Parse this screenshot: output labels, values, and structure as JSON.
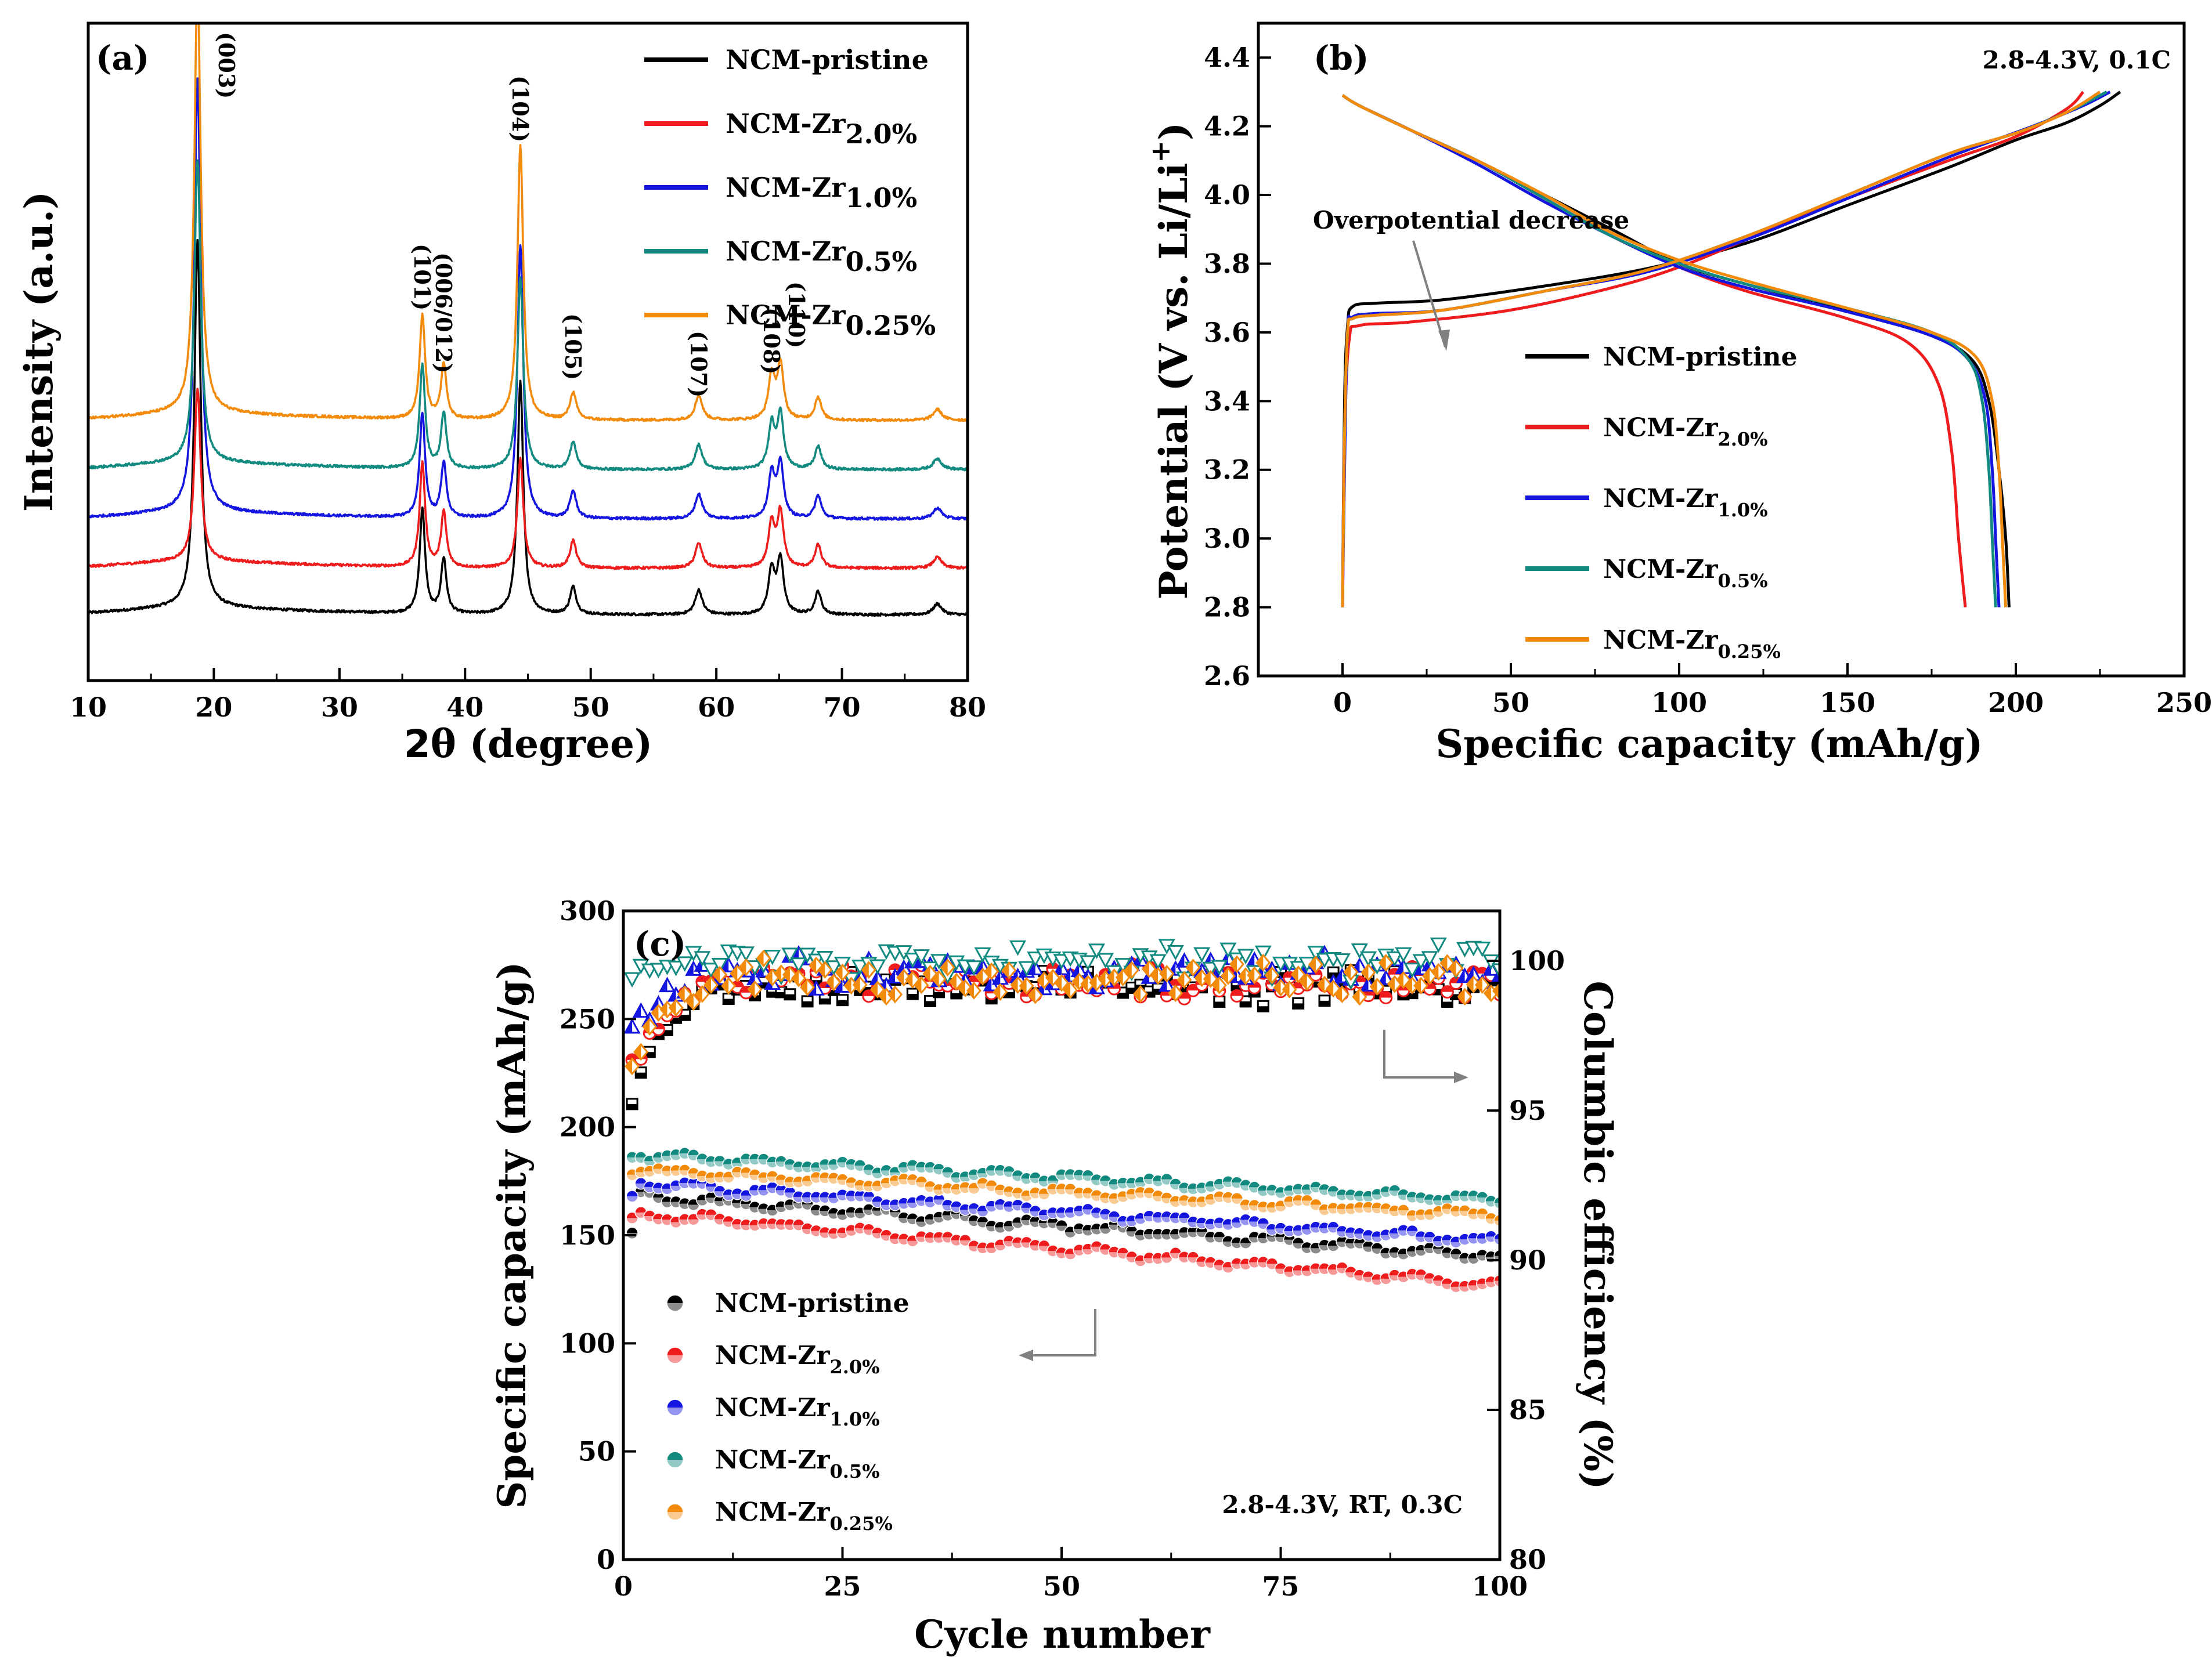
{
  "chart_data": [
    {
      "panel": "(a)",
      "type": "line",
      "title": "",
      "xlabel": "2θ (degree)",
      "ylabel": "Intensity (a.u.)",
      "xlim": [
        10,
        80
      ],
      "ylim": [
        -1.2,
        10.8
      ],
      "xticks": [
        10,
        20,
        30,
        40,
        50,
        60,
        70,
        80
      ],
      "peak_labels": [
        {
          "label": "(003)",
          "x": 18.7
        },
        {
          "label": "(101)",
          "x": 36.6
        },
        {
          "label": "(006/012)",
          "x": 38.3
        },
        {
          "label": "(104)",
          "x": 44.4
        },
        {
          "label": "(105)",
          "x": 48.6
        },
        {
          "label": "(107)",
          "x": 58.6
        },
        {
          "label": "(108)",
          "x": 64.4
        },
        {
          "label": "(110)",
          "x": 65.1
        }
      ],
      "peaks": [
        {
          "x": 18.7,
          "w": 0.3,
          "h": 7.9
        },
        {
          "x": 36.6,
          "w": 0.26,
          "h": 1.9
        },
        {
          "x": 38.3,
          "w": 0.26,
          "h": 1.0
        },
        {
          "x": 44.4,
          "w": 0.28,
          "h": 5.0
        },
        {
          "x": 48.6,
          "w": 0.3,
          "h": 0.5
        },
        {
          "x": 58.6,
          "w": 0.34,
          "h": 0.45
        },
        {
          "x": 64.4,
          "w": 0.3,
          "h": 0.8
        },
        {
          "x": 65.1,
          "w": 0.3,
          "h": 1.0
        },
        {
          "x": 68.1,
          "w": 0.3,
          "h": 0.42
        },
        {
          "x": 77.6,
          "w": 0.4,
          "h": 0.2
        }
      ],
      "series": [
        {
          "name": "NCM-pristine",
          "subscript": "",
          "color": "#000000",
          "offset": 0.0,
          "scale": 0.85
        },
        {
          "name": "NCM-Zr",
          "subscript": "2.0%",
          "color": "#ee1c1c",
          "offset": 0.85,
          "scale": 0.4
        },
        {
          "name": "NCM-Zr",
          "subscript": "1.0%",
          "color": "#1515e0",
          "offset": 1.75,
          "scale": 1.0
        },
        {
          "name": "NCM-Zr",
          "subscript": "0.5%",
          "color": "#138a80",
          "offset": 2.65,
          "scale": 0.7
        },
        {
          "name": "NCM-Zr",
          "subscript": "0.25%",
          "color": "#f28a0c",
          "offset": 3.55,
          "scale": 1.0
        }
      ]
    },
    {
      "panel": "(b)",
      "type": "line",
      "title": "",
      "annotation": "2.8-4.3V, 0.1C",
      "note": "Overpotential decrease",
      "xlabel": "Specific capacity (mAh/g)",
      "ylabel": "Potential (V vs. Li/Li",
      "ylabel_sup": "+",
      "ylabel_end": ")",
      "xlim": [
        -25,
        250
      ],
      "ylim": [
        2.6,
        4.5
      ],
      "xticks": [
        0,
        50,
        100,
        150,
        200,
        250
      ],
      "yticks": [
        2.6,
        2.8,
        3.0,
        3.2,
        3.4,
        3.6,
        3.8,
        4.0,
        4.2,
        4.4
      ],
      "series": [
        {
          "name": "NCM-pristine",
          "subscript": "",
          "color": "#000000",
          "charge": [
            [
              0,
              2.8
            ],
            [
              0.6,
              3.4
            ],
            [
              1.5,
              3.62
            ],
            [
              3,
              3.675
            ],
            [
              10,
              3.685
            ],
            [
              30,
              3.695
            ],
            [
              60,
              3.735
            ],
            [
              90,
              3.785
            ],
            [
              120,
              3.86
            ],
            [
              150,
              3.97
            ],
            [
              180,
              4.08
            ],
            [
              200,
              4.16
            ],
            [
              215,
              4.21
            ],
            [
              225,
              4.26
            ],
            [
              231,
              4.3
            ]
          ],
          "discharge": [
            [
              0,
              4.29
            ],
            [
              5,
              4.26
            ],
            [
              20,
              4.19
            ],
            [
              40,
              4.1
            ],
            [
              60,
              4.0
            ],
            [
              80,
              3.9
            ],
            [
              100,
              3.8
            ],
            [
              120,
              3.74
            ],
            [
              150,
              3.665
            ],
            [
              175,
              3.59
            ],
            [
              187,
              3.52
            ],
            [
              192,
              3.4
            ],
            [
              195,
              3.2
            ],
            [
              197,
              3.0
            ],
            [
              198,
              2.8
            ]
          ]
        },
        {
          "name": "NCM-Zr",
          "subscript": "2.0%",
          "color": "#ee1c1c",
          "charge": [
            [
              0,
              2.8
            ],
            [
              0.6,
              3.3
            ],
            [
              2,
              3.58
            ],
            [
              5,
              3.62
            ],
            [
              20,
              3.63
            ],
            [
              50,
              3.665
            ],
            [
              80,
              3.73
            ],
            [
              100,
              3.79
            ],
            [
              120,
              3.87
            ],
            [
              150,
              3.99
            ],
            [
              180,
              4.1
            ],
            [
              200,
              4.17
            ],
            [
              215,
              4.25
            ],
            [
              220,
              4.3
            ]
          ],
          "discharge": [
            [
              0,
              4.29
            ],
            [
              5,
              4.26
            ],
            [
              20,
              4.19
            ],
            [
              40,
              4.1
            ],
            [
              60,
              3.99
            ],
            [
              80,
              3.88
            ],
            [
              100,
              3.79
            ],
            [
              120,
              3.72
            ],
            [
              150,
              3.64
            ],
            [
              168,
              3.57
            ],
            [
              177,
              3.45
            ],
            [
              181,
              3.25
            ],
            [
              183,
              3.0
            ],
            [
              185,
              2.8
            ]
          ]
        },
        {
          "name": "NCM-Zr",
          "subscript": "1.0%",
          "color": "#1515e0",
          "charge": [
            [
              0,
              2.8
            ],
            [
              0.6,
              3.2
            ],
            [
              1.5,
              3.6
            ],
            [
              3,
              3.645
            ],
            [
              10,
              3.655
            ],
            [
              30,
              3.665
            ],
            [
              60,
              3.72
            ],
            [
              90,
              3.775
            ],
            [
              120,
              3.87
            ],
            [
              150,
              3.99
            ],
            [
              180,
              4.11
            ],
            [
              205,
              4.2
            ],
            [
              220,
              4.26
            ],
            [
              228,
              4.3
            ]
          ],
          "discharge": [
            [
              0,
              4.29
            ],
            [
              5,
              4.26
            ],
            [
              20,
              4.19
            ],
            [
              40,
              4.09
            ],
            [
              60,
              3.98
            ],
            [
              80,
              3.88
            ],
            [
              100,
              3.79
            ],
            [
              120,
              3.73
            ],
            [
              150,
              3.66
            ],
            [
              175,
              3.59
            ],
            [
              186,
              3.52
            ],
            [
              191,
              3.4
            ],
            [
              193,
              3.2
            ],
            [
              194,
              3.0
            ],
            [
              195,
              2.8
            ]
          ]
        },
        {
          "name": "NCM-Zr",
          "subscript": "0.5%",
          "color": "#138a80",
          "charge": [
            [
              0,
              2.8
            ],
            [
              0.6,
              3.3
            ],
            [
              1.5,
              3.6
            ],
            [
              3,
              3.64
            ],
            [
              10,
              3.65
            ],
            [
              30,
              3.665
            ],
            [
              60,
              3.72
            ],
            [
              90,
              3.78
            ],
            [
              120,
              3.88
            ],
            [
              150,
              4.0
            ],
            [
              180,
              4.12
            ],
            [
              200,
              4.18
            ],
            [
              215,
              4.24
            ],
            [
              227,
              4.3
            ]
          ],
          "discharge": [
            [
              0,
              4.29
            ],
            [
              5,
              4.26
            ],
            [
              20,
              4.19
            ],
            [
              40,
              4.1
            ],
            [
              60,
              3.99
            ],
            [
              80,
              3.88
            ],
            [
              100,
              3.8
            ],
            [
              120,
              3.74
            ],
            [
              150,
              3.67
            ],
            [
              175,
              3.6
            ],
            [
              186,
              3.52
            ],
            [
              190,
              3.4
            ],
            [
              192,
              3.2
            ],
            [
              193,
              3.0
            ],
            [
              194,
              2.8
            ]
          ]
        },
        {
          "name": "NCM-Zr",
          "subscript": "0.25%",
          "color": "#f28a0c",
          "charge": [
            [
              0,
              2.8
            ],
            [
              0.6,
              3.3
            ],
            [
              1.5,
              3.6
            ],
            [
              3,
              3.64
            ],
            [
              10,
              3.65
            ],
            [
              30,
              3.665
            ],
            [
              60,
              3.72
            ],
            [
              90,
              3.78
            ],
            [
              120,
              3.88
            ],
            [
              150,
              4.0
            ],
            [
              180,
              4.12
            ],
            [
              200,
              4.18
            ],
            [
              215,
              4.24
            ],
            [
              225,
              4.3
            ]
          ],
          "discharge": [
            [
              0,
              4.29
            ],
            [
              5,
              4.26
            ],
            [
              20,
              4.19
            ],
            [
              40,
              4.1
            ],
            [
              60,
              4.0
            ],
            [
              80,
              3.89
            ],
            [
              100,
              3.81
            ],
            [
              120,
              3.75
            ],
            [
              150,
              3.67
            ],
            [
              175,
              3.6
            ],
            [
              188,
              3.53
            ],
            [
              193,
              3.4
            ],
            [
              195,
              3.2
            ],
            [
              196,
              3.0
            ],
            [
              197,
              2.8
            ]
          ]
        }
      ]
    },
    {
      "panel": "(c)",
      "type": "scatter",
      "title": "",
      "annotation": "2.8-4.3V, RT, 0.3C",
      "xlabel": "Cycle number",
      "ylabel": "Specific capacity (mAh/g)",
      "y2label": "Columbic efficiency (%)",
      "xlim": [
        0,
        100
      ],
      "ylim": [
        0,
        300
      ],
      "y2lim": [
        80,
        101.67
      ],
      "xticks": [
        0,
        25,
        50,
        75,
        100
      ],
      "yticks": [
        0,
        50,
        100,
        150,
        200,
        250,
        300
      ],
      "y2ticks": [
        80,
        85,
        90,
        95,
        100
      ],
      "series": [
        {
          "name": "NCM-pristine",
          "subscript": "",
          "color": "#000000",
          "cap_start": 168,
          "cap_end": 140,
          "first": 151,
          "ce_start": 95.5,
          "ce_plateau": 99.1
        },
        {
          "name": "NCM-Zr",
          "subscript": "2.0%",
          "color": "#ee1c1c",
          "cap_start": 160,
          "cap_end": 127,
          "first": 158,
          "ce_start": 96.6,
          "ce_plateau": 99.3
        },
        {
          "name": "NCM-Zr",
          "subscript": "1.0%",
          "color": "#1515e0",
          "cap_start": 174,
          "cap_end": 147,
          "first": 168,
          "ce_start": 97.8,
          "ce_plateau": 99.6
        },
        {
          "name": "NCM-Zr",
          "subscript": "0.5%",
          "color": "#138a80",
          "cap_start": 187,
          "cap_end": 166,
          "first": 186,
          "ce_start": 99.6,
          "ce_plateau": 100.0
        },
        {
          "name": "NCM-Zr",
          "subscript": "0.25%",
          "color": "#f28a0c",
          "cap_start": 180,
          "cap_end": 159,
          "first": 178,
          "ce_start": 96.5,
          "ce_plateau": 99.4
        }
      ]
    }
  ]
}
